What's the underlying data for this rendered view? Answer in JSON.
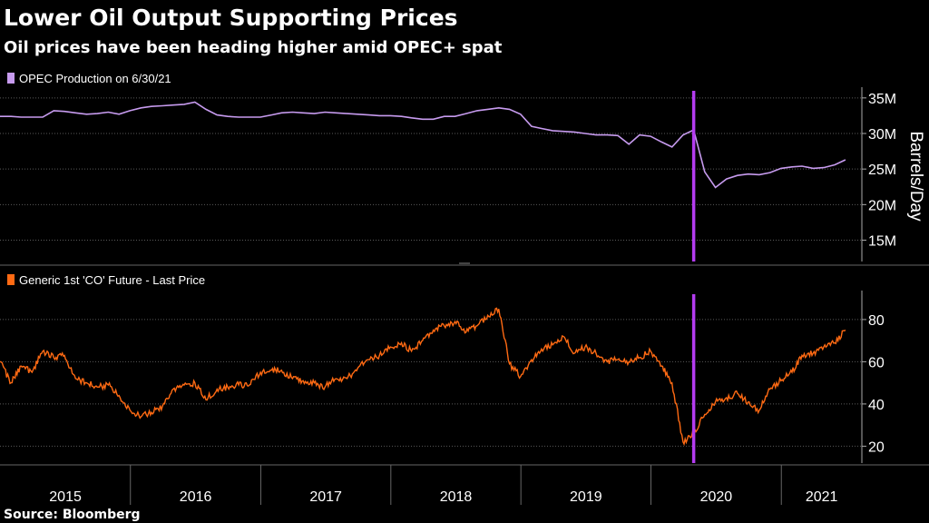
{
  "header": {
    "title": "Lower Oil Output Supporting Prices",
    "subtitle": "Oil prices have been heading higher amid OPEC+ spat"
  },
  "source": "Source: Bloomberg",
  "colors": {
    "background": "#000000",
    "opec_line": "#c79bef",
    "brent_line": "#ff6a13",
    "marker": "#b43cf0",
    "grid": "#5a5a5a",
    "text": "#ffffff"
  },
  "chart_data": [
    {
      "type": "line",
      "legend": "OPEC Production on 6/30/21",
      "ylabel": "Barrels/Day",
      "ylim": [
        12000000,
        36000000
      ],
      "yticks": [
        15000000,
        20000000,
        25000000,
        30000000,
        35000000
      ],
      "ytick_labels": [
        "15M",
        "20M",
        "25M",
        "30M",
        "35M"
      ],
      "grid": true,
      "legend_position": "top-left",
      "series": [
        {
          "x": [
            "2014-12-31",
            "2015-01-31",
            "2015-02-28",
            "2015-03-31",
            "2015-04-30",
            "2015-05-31",
            "2015-06-30",
            "2015-07-31",
            "2015-08-31",
            "2015-09-30",
            "2015-10-31",
            "2015-11-30",
            "2015-12-31",
            "2016-01-31",
            "2016-02-29",
            "2016-03-31",
            "2016-04-30",
            "2016-05-31",
            "2016-06-30",
            "2016-07-31",
            "2016-08-31",
            "2016-09-30",
            "2016-10-31",
            "2016-11-30",
            "2016-12-31",
            "2017-01-31",
            "2017-02-28",
            "2017-03-31",
            "2017-04-30",
            "2017-05-31",
            "2017-06-30",
            "2017-07-31",
            "2017-08-31",
            "2017-09-30",
            "2017-10-31",
            "2017-11-30",
            "2017-12-31",
            "2018-01-31",
            "2018-02-28",
            "2018-03-31",
            "2018-04-30",
            "2018-05-31",
            "2018-06-30",
            "2018-07-31",
            "2018-08-31",
            "2018-09-30",
            "2018-10-31",
            "2018-11-30",
            "2018-12-31",
            "2019-01-31",
            "2019-02-28",
            "2019-03-31",
            "2019-04-30",
            "2019-05-31",
            "2019-06-30",
            "2019-07-31",
            "2019-08-31",
            "2019-09-30",
            "2019-10-31",
            "2019-11-30",
            "2019-12-31",
            "2020-01-31",
            "2020-02-29",
            "2020-03-31",
            "2020-04-30",
            "2020-05-31",
            "2020-06-30",
            "2020-07-31",
            "2020-08-31",
            "2020-09-30",
            "2020-10-31",
            "2020-11-30",
            "2020-12-31",
            "2021-01-31",
            "2021-02-28",
            "2021-03-31",
            "2021-04-30",
            "2021-05-31",
            "2021-06-30"
          ],
          "y": [
            32400000,
            32400000,
            32300000,
            32300000,
            32300000,
            33200000,
            33100000,
            32900000,
            32700000,
            32800000,
            33000000,
            32700000,
            33200000,
            33600000,
            33800000,
            33900000,
            34000000,
            34100000,
            34400000,
            33400000,
            32600000,
            32400000,
            32300000,
            32300000,
            32300000,
            32600000,
            32900000,
            33000000,
            32900000,
            32800000,
            33000000,
            32900000,
            32800000,
            32700000,
            32600000,
            32500000,
            32500000,
            32400000,
            32200000,
            32000000,
            32000000,
            32400000,
            32400000,
            32800000,
            33200000,
            33400000,
            33600000,
            33400000,
            32700000,
            31000000,
            30700000,
            30400000,
            30300000,
            30200000,
            30000000,
            29800000,
            29800000,
            29700000,
            28500000,
            29800000,
            29600000,
            28800000,
            28100000,
            29800000,
            30500000,
            24600000,
            22400000,
            23600000,
            24100000,
            24300000,
            24200000,
            24500000,
            25100000,
            25300000,
            25400000,
            25100000,
            25200000,
            25600000,
            26300000
          ]
        }
      ]
    },
    {
      "type": "line",
      "legend": "Generic 1st 'CO' Future - Last Price",
      "ylim": [
        12,
        92
      ],
      "yticks": [
        20,
        40,
        60,
        80
      ],
      "ytick_labels": [
        "20",
        "40",
        "60",
        "80"
      ],
      "grid": true,
      "legend_position": "top-left",
      "series": [
        {
          "x": [
            "2014-12-31",
            "2015-01-31",
            "2015-02-28",
            "2015-03-31",
            "2015-04-30",
            "2015-05-31",
            "2015-06-30",
            "2015-07-31",
            "2015-08-31",
            "2015-09-30",
            "2015-10-31",
            "2015-11-30",
            "2015-12-31",
            "2016-01-31",
            "2016-02-29",
            "2016-03-31",
            "2016-04-30",
            "2016-05-31",
            "2016-06-30",
            "2016-07-31",
            "2016-08-31",
            "2016-09-30",
            "2016-10-31",
            "2016-11-30",
            "2016-12-31",
            "2017-01-31",
            "2017-02-28",
            "2017-03-31",
            "2017-04-30",
            "2017-05-31",
            "2017-06-30",
            "2017-07-31",
            "2017-08-31",
            "2017-09-30",
            "2017-10-31",
            "2017-11-30",
            "2017-12-31",
            "2018-01-31",
            "2018-02-28",
            "2018-03-31",
            "2018-04-30",
            "2018-05-31",
            "2018-06-30",
            "2018-07-31",
            "2018-08-31",
            "2018-09-30",
            "2018-10-31",
            "2018-11-30",
            "2018-12-31",
            "2019-01-31",
            "2019-02-28",
            "2019-03-31",
            "2019-04-30",
            "2019-05-31",
            "2019-06-30",
            "2019-07-31",
            "2019-08-31",
            "2019-09-30",
            "2019-10-31",
            "2019-11-30",
            "2019-12-31",
            "2020-01-31",
            "2020-02-29",
            "2020-03-31",
            "2020-04-30",
            "2020-05-31",
            "2020-06-30",
            "2020-07-31",
            "2020-08-31",
            "2020-09-30",
            "2020-10-31",
            "2020-11-30",
            "2020-12-31",
            "2021-01-31",
            "2021-02-28",
            "2021-03-31",
            "2021-04-30",
            "2021-05-31",
            "2021-06-30"
          ],
          "y": [
            60,
            50,
            58,
            55,
            65,
            62,
            63,
            52,
            50,
            48,
            49,
            44,
            37,
            34,
            36,
            39,
            47,
            49,
            50,
            42,
            47,
            48,
            49,
            49,
            55,
            56,
            56,
            52,
            51,
            50,
            48,
            52,
            52,
            57,
            61,
            63,
            67,
            69,
            65,
            70,
            75,
            77,
            79,
            74,
            77,
            82,
            85,
            59,
            53,
            61,
            66,
            68,
            72,
            64,
            67,
            64,
            60,
            61,
            60,
            62,
            65,
            58,
            50,
            22,
            26,
            35,
            41,
            43,
            45,
            41,
            37,
            47,
            51,
            55,
            63,
            64,
            67,
            69,
            75
          ]
        }
      ]
    }
  ],
  "x_axis": {
    "tick_labels": [
      "2015",
      "2016",
      "2017",
      "2018",
      "2019",
      "2020",
      "2021"
    ],
    "marker_date": "2020-04-30"
  }
}
